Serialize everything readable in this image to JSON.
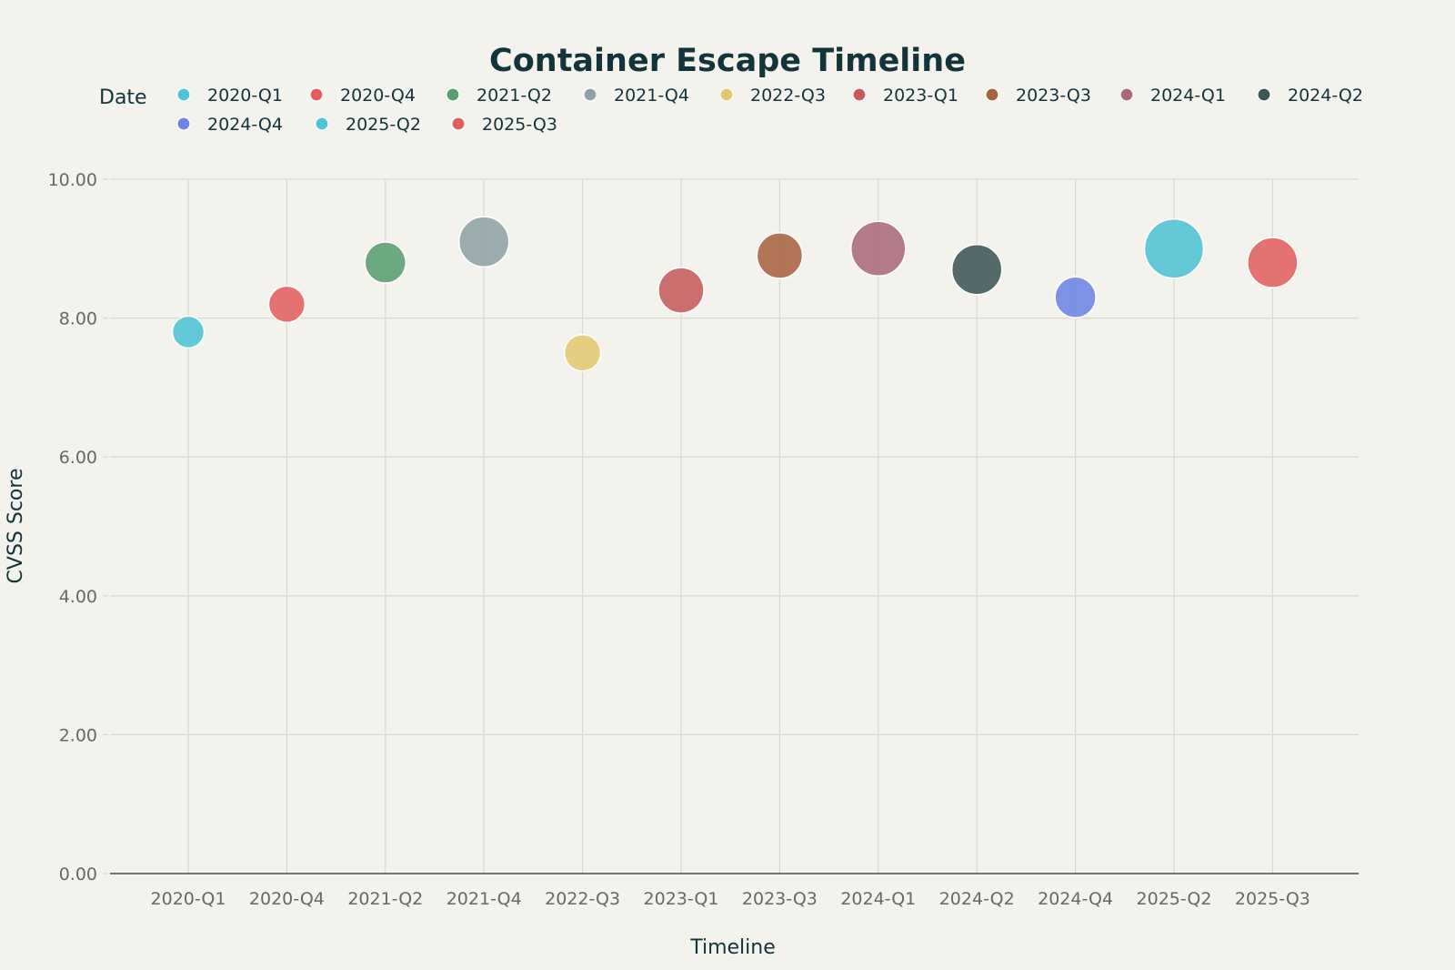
{
  "chart_data": {
    "type": "scatter",
    "title": "Container Escape Timeline",
    "xlabel": "Timeline",
    "ylabel": "CVSS Score",
    "legend_title": "Date",
    "legend_position": "top",
    "grid": true,
    "ylim": [
      0,
      10
    ],
    "y_ticks": [
      "0.00",
      "2.00",
      "4.00",
      "6.00",
      "8.00",
      "10.00"
    ],
    "categories": [
      "2020-Q1",
      "2020-Q4",
      "2021-Q2",
      "2021-Q4",
      "2022-Q3",
      "2023-Q1",
      "2023-Q3",
      "2024-Q1",
      "2024-Q2",
      "2024-Q4",
      "2025-Q2",
      "2025-Q3"
    ],
    "series": [
      {
        "name": "2020-Q1",
        "x": "2020-Q1",
        "y": 7.8,
        "size": 1,
        "color": "#4fc3d4"
      },
      {
        "name": "2020-Q4",
        "x": "2020-Q4",
        "y": 8.2,
        "size": 2,
        "color": "#e0605e"
      },
      {
        "name": "2021-Q2",
        "x": "2021-Q2",
        "y": 8.8,
        "size": 3,
        "color": "#5a9e70"
      },
      {
        "name": "2021-Q4",
        "x": "2021-Q4",
        "y": 9.1,
        "size": 5,
        "color": "#8ea2a6"
      },
      {
        "name": "2022-Q3",
        "x": "2022-Q3",
        "y": 7.5,
        "size": 2,
        "color": "#e3c870"
      },
      {
        "name": "2023-Q1",
        "x": "2023-Q1",
        "y": 8.4,
        "size": 4,
        "color": "#c45c5c"
      },
      {
        "name": "2023-Q3",
        "x": "2023-Q3",
        "y": 8.9,
        "size": 4,
        "color": "#a7623f"
      },
      {
        "name": "2024-Q1",
        "x": "2024-Q1",
        "y": 9.0,
        "size": 6,
        "color": "#aa6a7a"
      },
      {
        "name": "2024-Q2",
        "x": "2024-Q2",
        "y": 8.7,
        "size": 5,
        "color": "#3d5558"
      },
      {
        "name": "2024-Q4",
        "x": "2024-Q4",
        "y": 8.3,
        "size": 3,
        "color": "#6d84e4"
      },
      {
        "name": "2025-Q2",
        "x": "2025-Q2",
        "y": 9.0,
        "size": 7,
        "color": "#4fc3d4"
      },
      {
        "name": "2025-Q3",
        "x": "2025-Q3",
        "y": 8.8,
        "size": 5,
        "color": "#e0605e"
      }
    ]
  }
}
